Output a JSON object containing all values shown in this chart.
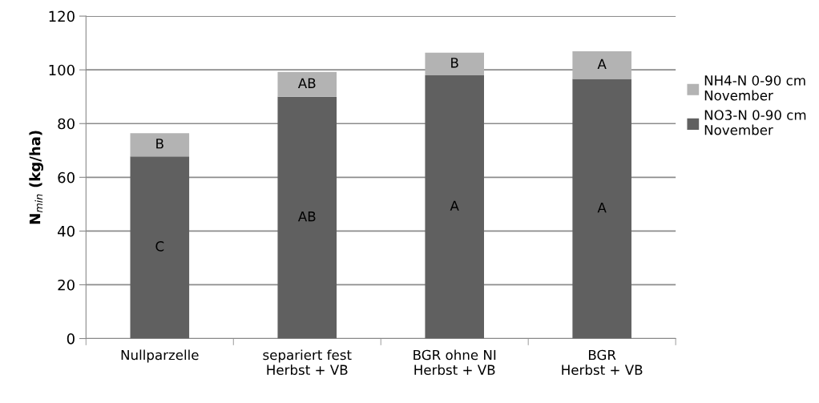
{
  "chart_data": {
    "type": "bar",
    "stacked": true,
    "ylabel": "N$_{min}$ (kg/ha)",
    "categories": [
      "Nullparzelle",
      "separiert fest\nHerbst + VB",
      "BGR ohne NI\nHerbst + VB",
      "BGR\nHerbst + VB"
    ],
    "series": [
      {
        "name": "NO3-N 0-90 cm\nNovember",
        "color": "#606060",
        "values": [
          67.8,
          90.0,
          98.0,
          96.6
        ],
        "value_labels": [
          "C",
          "AB",
          "A",
          "A"
        ]
      },
      {
        "name": "NH4-N 0-90 cm\nNovember",
        "color": "#b3b3b3",
        "values": [
          8.6,
          9.2,
          8.4,
          10.3
        ],
        "value_labels": [
          "B",
          "AB",
          "B",
          "A"
        ]
      }
    ],
    "ylim": [
      0,
      120
    ],
    "yticks": [
      0,
      20,
      40,
      60,
      80,
      100,
      120
    ],
    "grid": "y",
    "legend": "right"
  }
}
